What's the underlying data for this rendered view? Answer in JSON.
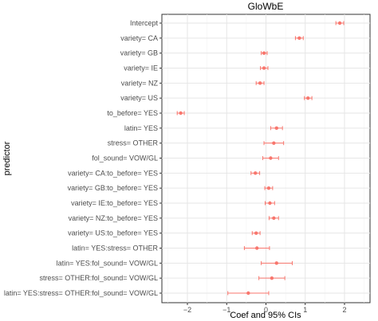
{
  "chart_data": {
    "type": "scatter",
    "title": "GloWbE",
    "xlabel": "Coef and 95% CIs",
    "ylabel": "predictor",
    "xlim": [
      -2.65,
      2.65
    ],
    "x_ticks": [
      -2,
      -1,
      0,
      1,
      2
    ],
    "grid": true,
    "point_color": "#f8766d",
    "categories": [
      "Intercept",
      "variety= CA",
      "variety= GB",
      "variety= IE",
      "variety= NZ",
      "variety= US",
      "to_before= YES",
      "latin= YES",
      "stress= OTHER",
      "fol_sound= VOW/GL",
      "variety= CA:to_before= YES",
      "variety= GB:to_before= YES",
      "variety= IE:to_before= YES",
      "variety= NZ:to_before= YES",
      "variety= US:to_before= YES",
      "latin= YES:stress= OTHER",
      "latin= YES:fol_sound= VOW/GL",
      "stress= OTHER:fol_sound= VOW/GL",
      "latin= YES:stress= OTHER:fol_sound= VOW/GL"
    ],
    "estimates": [
      1.88,
      0.85,
      -0.05,
      -0.05,
      -0.15,
      1.07,
      -2.17,
      0.27,
      0.2,
      0.12,
      -0.27,
      0.07,
      0.1,
      0.2,
      -0.25,
      -0.23,
      0.27,
      0.15,
      -0.45
    ],
    "ci_low": [
      1.78,
      0.75,
      -0.12,
      -0.14,
      -0.25,
      0.98,
      -2.26,
      0.12,
      -0.05,
      -0.08,
      -0.38,
      -0.03,
      -0.02,
      0.08,
      -0.35,
      -0.55,
      -0.12,
      -0.18,
      -0.97
    ],
    "ci_high": [
      1.98,
      0.95,
      0.03,
      0.05,
      -0.05,
      1.17,
      -2.08,
      0.42,
      0.45,
      0.32,
      -0.16,
      0.17,
      0.22,
      0.32,
      -0.15,
      0.09,
      0.67,
      0.48,
      0.07
    ]
  }
}
